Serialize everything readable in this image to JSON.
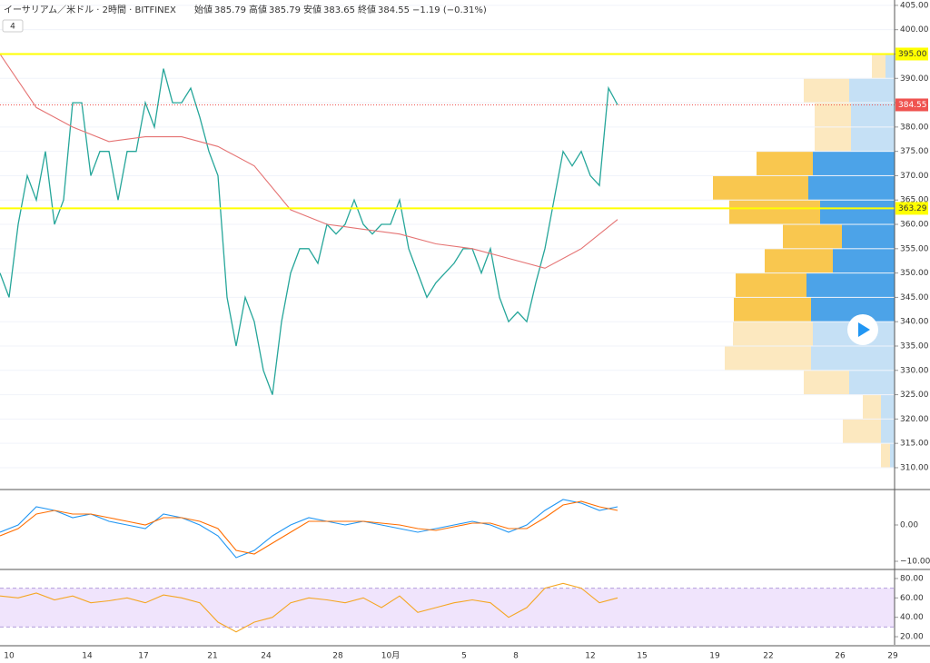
{
  "header": {
    "symbol": "イーサリアム／米ドル · 2時間 · BITFINEX",
    "quote": [
      {
        "label": "始値",
        "value": "385.79"
      },
      {
        "label": "高値",
        "value": "385.79"
      },
      {
        "label": "安値",
        "value": "383.65"
      },
      {
        "label": "終値",
        "value": "384.55"
      }
    ],
    "change": "−1.19 (−0.31%)",
    "badge": "4"
  },
  "chart_data": [
    {
      "type": "line",
      "ylim": [
        305.7,
        406.1
      ],
      "yticks": [
        {
          "value": 310,
          "label": "310.00"
        },
        {
          "value": 315,
          "label": "315.00"
        },
        {
          "value": 320,
          "label": "320.00"
        },
        {
          "value": 325,
          "label": "325.00"
        },
        {
          "value": 330,
          "label": "330.00"
        },
        {
          "value": 335,
          "label": "335.00"
        },
        {
          "value": 340,
          "label": "340.00"
        },
        {
          "value": 345,
          "label": "345.00"
        },
        {
          "value": 350,
          "label": "350.00"
        },
        {
          "value": 355,
          "label": "355.00"
        },
        {
          "value": 360,
          "label": "360.00"
        },
        {
          "value": 365,
          "label": "365.00"
        },
        {
          "value": 370,
          "label": "370.00"
        },
        {
          "value": 375,
          "label": "375.00"
        },
        {
          "value": 380,
          "label": "380.00"
        },
        {
          "value": 385,
          "label": "385.00"
        },
        {
          "value": 390,
          "label": "390.00"
        },
        {
          "value": 395,
          "label": "395.00"
        },
        {
          "value": 400,
          "label": "400.00"
        },
        {
          "value": 405,
          "label": "405.00"
        }
      ],
      "grid": true,
      "xtick_labels": [
        "10",
        "14",
        "17",
        "21",
        "24",
        "28",
        "10月",
        "5",
        "8",
        "12",
        "15",
        "19",
        "22",
        "26",
        "29"
      ],
      "series": [
        {
          "color": "#26a69a",
          "values": [
            350,
            345,
            360,
            370,
            365,
            375,
            360,
            365,
            385,
            385,
            370,
            375,
            375,
            365,
            375,
            375,
            385,
            380,
            392,
            385,
            385,
            388,
            382,
            375,
            370,
            345,
            335,
            345,
            340,
            330,
            325,
            340,
            350,
            355,
            355,
            352,
            360,
            358,
            360,
            365,
            360,
            358,
            360,
            360,
            365,
            355,
            350,
            345,
            348,
            350,
            352,
            355,
            355,
            350,
            355,
            345,
            340,
            342,
            340,
            348,
            355,
            365,
            375,
            372,
            375,
            370,
            368,
            388,
            384.55
          ]
        },
        {
          "color": "#e57373",
          "values": [
            395,
            384,
            380,
            377,
            378,
            378,
            376,
            372,
            363,
            360,
            359,
            358,
            356,
            355,
            353,
            351,
            355,
            361
          ]
        }
      ],
      "levels": [
        {
          "value": 395,
          "label": "395.00"
        },
        {
          "value": 363.29,
          "label": "363.29"
        }
      ],
      "level_color": "#ffff00",
      "last_price": {
        "value": 384.55,
        "label": "384.55",
        "color": "#ef5350"
      },
      "volume_profile": {
        "levels": [
          392.5,
          387.5,
          382.5,
          377.5,
          372.5,
          367.5,
          362.5,
          357.5,
          352.5,
          347.5,
          342.5,
          337.5,
          332.5,
          327.5,
          322.5,
          317.5,
          312.5
        ],
        "up": [
          15,
          50,
          40,
          40,
          62,
          105,
          100,
          65,
          75,
          78,
          85,
          88,
          95,
          50,
          20,
          42,
          10
        ],
        "down": [
          10,
          50,
          48,
          48,
          90,
          95,
          82,
          58,
          68,
          97,
          92,
          90,
          92,
          50,
          15,
          15,
          5
        ],
        "value_area": [
          340,
          375
        ],
        "up_color": "#f9c74f",
        "down_color": "#4ca3e8",
        "up_light": "#fce8bf",
        "down_light": "#c5e0f5"
      }
    },
    {
      "type": "line",
      "ylim": [
        -11.75,
        9.5
      ],
      "yticks": [
        {
          "value": 0,
          "label": "0.00"
        },
        {
          "value": -10,
          "label": "−10.00"
        }
      ],
      "series": [
        {
          "color": "#2196f3",
          "values": [
            -2,
            0,
            5,
            4,
            2,
            3,
            1,
            0,
            -1,
            3,
            2,
            0,
            -3,
            -9,
            -7,
            -3,
            0,
            2,
            1,
            0,
            1,
            0,
            -1,
            -2,
            -1,
            0,
            1,
            0,
            -2,
            0,
            4,
            7,
            6,
            4,
            5
          ]
        },
        {
          "color": "#ff6d00",
          "values": [
            -3,
            -1,
            3,
            4,
            3,
            3,
            2,
            1,
            0,
            2,
            2,
            1,
            -1,
            -7,
            -8,
            -5,
            -2,
            1,
            1,
            1,
            1,
            0.5,
            0,
            -1,
            -1.5,
            -0.5,
            0.5,
            0.5,
            -1,
            -1,
            2,
            5.5,
            6.5,
            5,
            4
          ]
        }
      ]
    },
    {
      "type": "line",
      "ylim": [
        11.6,
        88.4
      ],
      "yticks": [
        {
          "value": 80,
          "label": "80.00"
        },
        {
          "value": 60,
          "label": "60.00"
        },
        {
          "value": 40,
          "label": "40.00"
        },
        {
          "value": 20,
          "label": "20.00"
        }
      ],
      "band": [
        30,
        70
      ],
      "band_color": "#e9d8fb",
      "series": [
        {
          "color": "#f5a623",
          "values": [
            62,
            60,
            65,
            58,
            62,
            55,
            57,
            60,
            55,
            63,
            60,
            55,
            35,
            25,
            35,
            40,
            55,
            60,
            58,
            55,
            60,
            50,
            62,
            45,
            50,
            55,
            58,
            55,
            40,
            50,
            70,
            75,
            70,
            55,
            60
          ]
        }
      ]
    }
  ]
}
